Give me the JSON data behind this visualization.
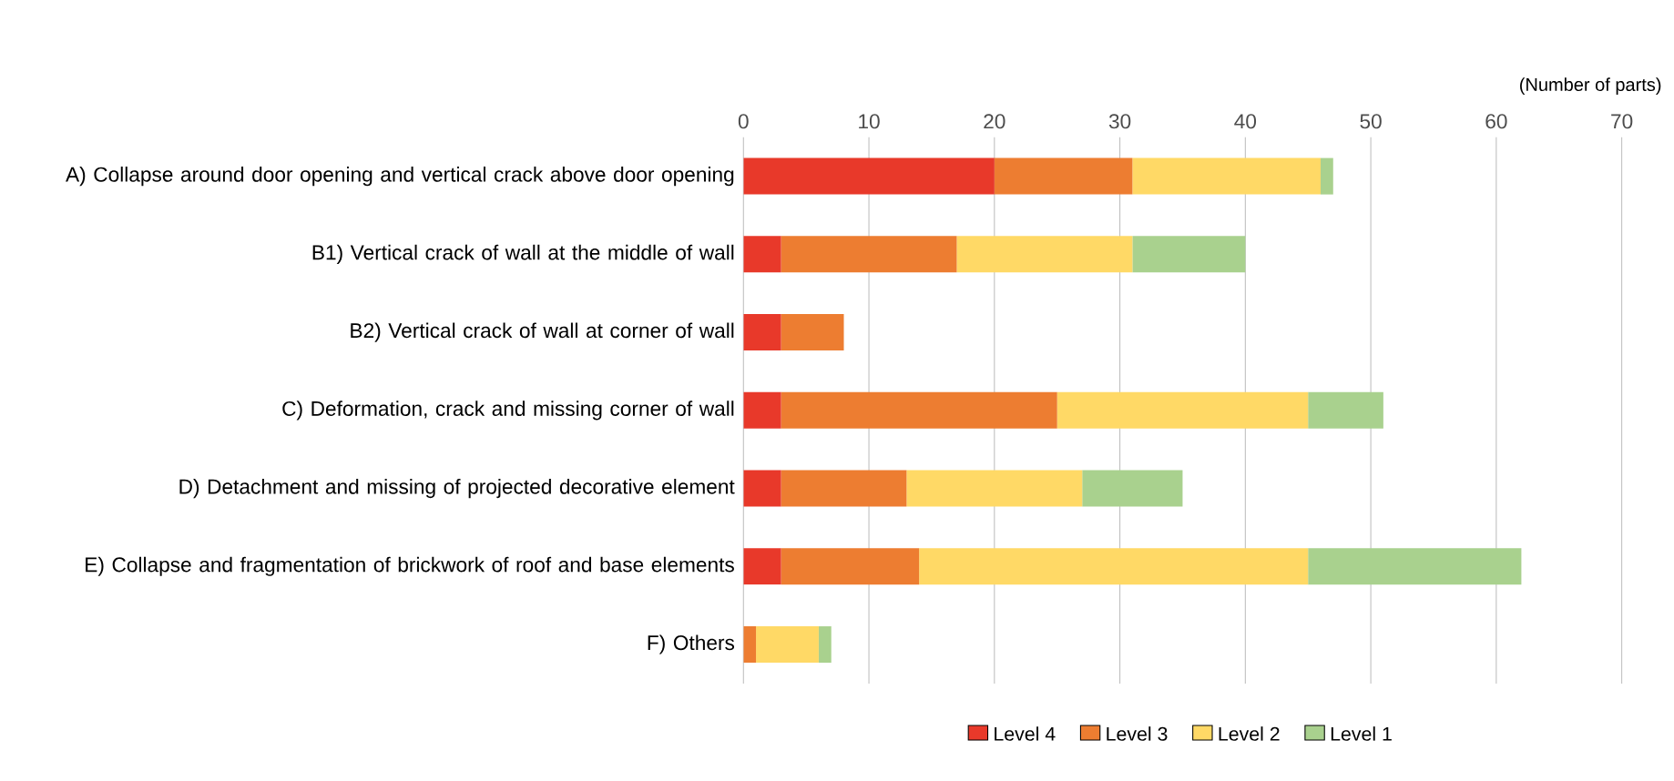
{
  "chart_data": {
    "type": "bar",
    "orientation": "horizontal",
    "stacked": true,
    "xlabel": "(Number of parts)",
    "categories": [
      "A) Collapse around door opening and vertical crack above door opening",
      "B1) Vertical crack of wall at the middle of wall",
      "B2) Vertical crack of wall at corner of wall",
      "C) Deformation, crack and missing corner of wall",
      "D) Detachment and missing of projected decorative element",
      "E) Collapse and fragmentation of brickwork of roof and base elements",
      "F) Others"
    ],
    "series": [
      {
        "name": "Level 4",
        "color": "#e8392a",
        "values": [
          20,
          3,
          3,
          3,
          3,
          3,
          0
        ]
      },
      {
        "name": "Level 3",
        "color": "#ed7d31",
        "values": [
          11,
          14,
          5,
          22,
          10,
          11,
          1
        ]
      },
      {
        "name": "Level 2",
        "color": "#ffd966",
        "values": [
          15,
          14,
          0,
          20,
          14,
          31,
          5
        ]
      },
      {
        "name": "Level 1",
        "color": "#a9d18e",
        "values": [
          1,
          9,
          0,
          6,
          8,
          17,
          1
        ]
      }
    ],
    "xlim": [
      0,
      70
    ],
    "xticks": [
      0,
      10,
      20,
      30,
      40,
      50,
      60,
      70
    ],
    "grid": "x",
    "legend": "bottom"
  }
}
